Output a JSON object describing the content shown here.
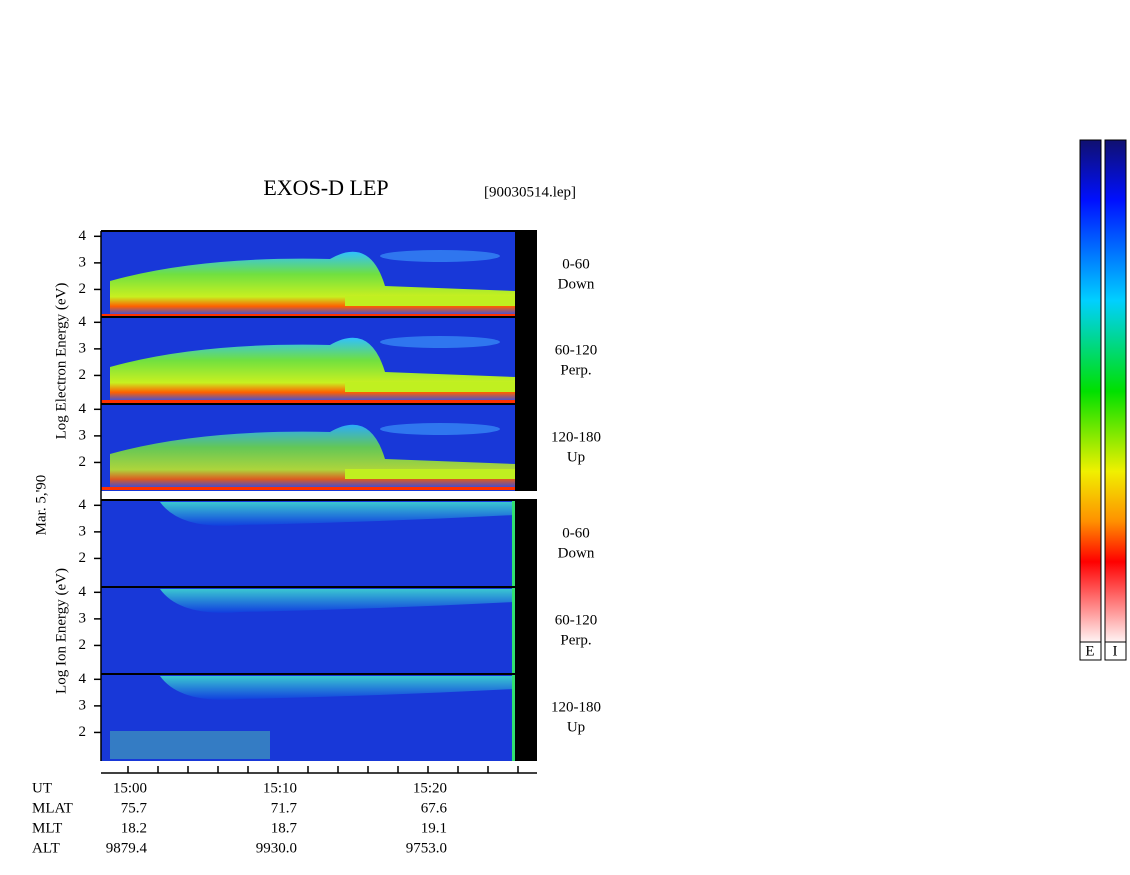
{
  "title": "EXOS-D LEP",
  "file": "[90030514.lep]",
  "date": "Mar. 5,'90",
  "ylim": [
    1,
    4.2
  ],
  "yticks": [
    2,
    3,
    4
  ],
  "electron": {
    "ylabel": "Log  Electron  Energy (eV)",
    "panels": [
      {
        "angle": "0-60",
        "dir": "Down"
      },
      {
        "angle": "60-120",
        "dir": "Perp."
      },
      {
        "angle": "120-180",
        "dir": "Up"
      }
    ]
  },
  "ion": {
    "ylabel": "Log  Ion  Energy (eV)",
    "panels": [
      {
        "angle": "0-60",
        "dir": "Down"
      },
      {
        "angle": "60-120",
        "dir": "Perp."
      },
      {
        "angle": "120-180",
        "dir": "Up"
      }
    ]
  },
  "ephemeris": {
    "rows": [
      [
        "UT",
        "15:00",
        "15:10",
        "15:20"
      ],
      [
        "MLAT",
        "75.7",
        "71.7",
        "67.6"
      ],
      [
        "MLT",
        "18.2",
        "18.7",
        "19.1"
      ],
      [
        "ALT",
        "9879.4",
        "9930.0",
        "9753.0"
      ]
    ]
  },
  "colorbars": [
    "E",
    "I"
  ]
}
